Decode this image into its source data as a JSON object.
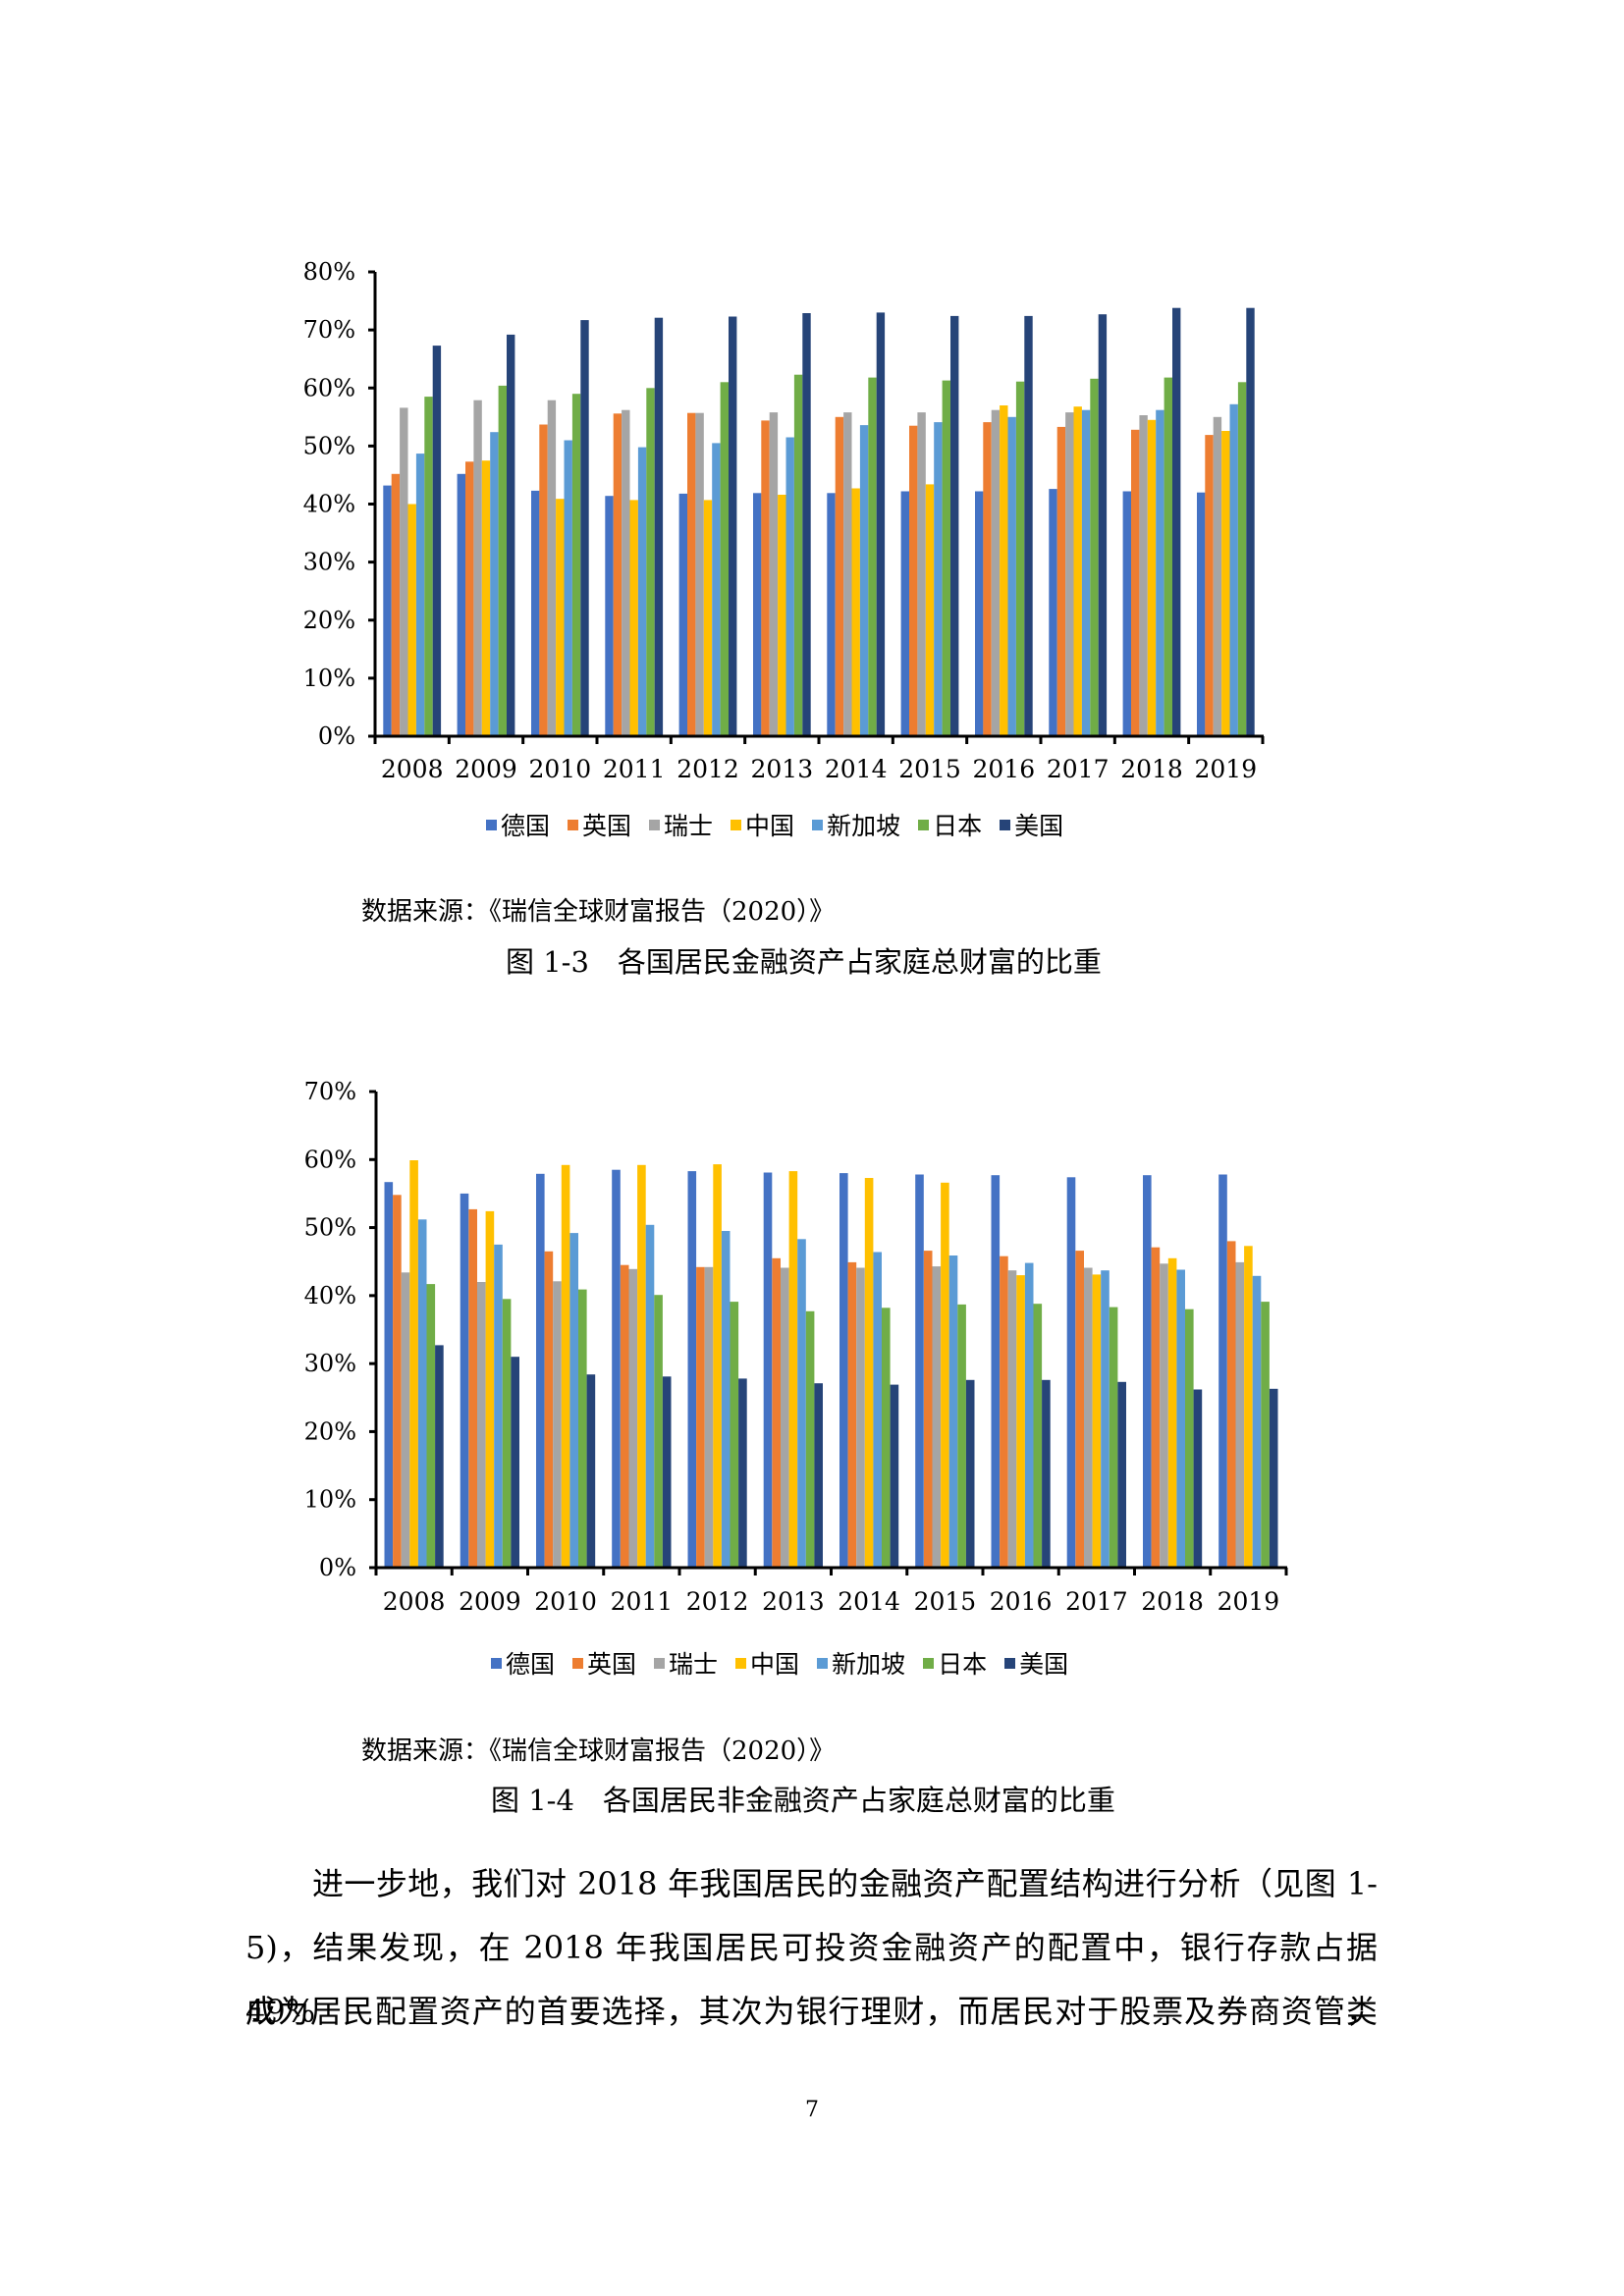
{
  "page": {
    "page_number": "7",
    "body_lines": [
      "进一步地，我们对 2018 年我国居民的金融资产配置结构进行分析（见图 1-",
      "5)，结果发现，在 2018 年我国居民可投资金融资产的配置中，银行存款占据 49%，",
      "成为居民配置资产的首要选择，其次为银行理财，而居民对于股票及券商资管类"
    ]
  },
  "figures": [
    {
      "source": "数据来源：《瑞信全球财富报告（2020）》",
      "caption": "图 1-3　各国居民金融资产占家庭总财富的比重"
    },
    {
      "source": "数据来源：《瑞信全球财富报告（2020）》",
      "caption": "图 1-4　各国居民非金融资产占家庭总财富的比重"
    }
  ],
  "chart_data": [
    {
      "type": "bar",
      "title": "图 1-3 各国居民金融资产占家庭总财富的比重",
      "xlabel": "",
      "ylabel": "",
      "ylim": [
        0,
        80
      ],
      "yticks": [
        "0%",
        "10%",
        "20%",
        "30%",
        "40%",
        "50%",
        "60%",
        "70%",
        "80%"
      ],
      "grid": false,
      "legend_position": "bottom",
      "categories": [
        "2008",
        "2009",
        "2010",
        "2011",
        "2012",
        "2013",
        "2014",
        "2015",
        "2016",
        "2017",
        "2018",
        "2019"
      ],
      "series": [
        {
          "name": "德国",
          "color": "#4472C4",
          "values": [
            43.2,
            45.2,
            42.3,
            41.4,
            41.8,
            41.9,
            41.9,
            42.2,
            42.2,
            42.6,
            42.2,
            42.0
          ]
        },
        {
          "name": "英国",
          "color": "#ED7D31",
          "values": [
            45.2,
            47.3,
            53.7,
            55.6,
            55.7,
            54.4,
            55.0,
            53.5,
            54.1,
            53.3,
            52.8,
            51.9
          ]
        },
        {
          "name": "瑞士",
          "color": "#A5A5A5",
          "values": [
            56.6,
            57.9,
            57.9,
            56.2,
            55.7,
            55.8,
            55.8,
            55.8,
            56.2,
            55.8,
            55.3,
            55.0
          ]
        },
        {
          "name": "中国",
          "color": "#FFC000",
          "values": [
            40.0,
            47.5,
            40.9,
            40.7,
            40.7,
            41.6,
            42.7,
            43.4,
            57.0,
            56.8,
            54.5,
            52.6
          ]
        },
        {
          "name": "新加坡",
          "color": "#5B9BD5",
          "values": [
            48.7,
            52.4,
            51.0,
            49.8,
            50.5,
            51.5,
            53.6,
            54.1,
            55.0,
            56.2,
            56.2,
            57.2
          ]
        },
        {
          "name": "日本",
          "color": "#70AD47",
          "values": [
            58.5,
            60.4,
            59.0,
            60.0,
            61.0,
            62.3,
            61.8,
            61.3,
            61.1,
            61.6,
            61.8,
            61.0
          ]
        },
        {
          "name": "美国",
          "color": "#264478",
          "values": [
            67.3,
            69.2,
            71.7,
            72.1,
            72.3,
            72.9,
            73.0,
            72.4,
            72.4,
            72.7,
            73.8,
            73.8
          ]
        }
      ]
    },
    {
      "type": "bar",
      "title": "图 1-4 各国居民非金融资产占家庭总财富的比重",
      "xlabel": "",
      "ylabel": "",
      "ylim": [
        0,
        70
      ],
      "yticks": [
        "0%",
        "10%",
        "20%",
        "30%",
        "40%",
        "50%",
        "60%",
        "70%"
      ],
      "grid": false,
      "legend_position": "bottom",
      "categories": [
        "2008",
        "2009",
        "2010",
        "2011",
        "2012",
        "2013",
        "2014",
        "2015",
        "2016",
        "2017",
        "2018",
        "2019"
      ],
      "series": [
        {
          "name": "德国",
          "color": "#4472C4",
          "values": [
            56.7,
            55.0,
            57.9,
            58.5,
            58.3,
            58.1,
            58.0,
            57.8,
            57.7,
            57.4,
            57.7,
            57.8
          ]
        },
        {
          "name": "英国",
          "color": "#ED7D31",
          "values": [
            54.8,
            52.7,
            46.5,
            44.5,
            44.2,
            45.5,
            44.9,
            46.6,
            45.8,
            46.6,
            47.1,
            48.0
          ]
        },
        {
          "name": "瑞士",
          "color": "#A5A5A5",
          "values": [
            43.4,
            42.0,
            42.1,
            43.9,
            44.2,
            44.1,
            44.1,
            44.3,
            43.7,
            44.1,
            44.7,
            44.9
          ]
        },
        {
          "name": "中国",
          "color": "#FFC000",
          "values": [
            59.9,
            52.4,
            59.2,
            59.2,
            59.3,
            58.3,
            57.3,
            56.6,
            43.0,
            43.1,
            45.5,
            47.3
          ]
        },
        {
          "name": "新加坡",
          "color": "#5B9BD5",
          "values": [
            51.2,
            47.5,
            49.2,
            50.4,
            49.5,
            48.3,
            46.4,
            45.9,
            44.8,
            43.7,
            43.8,
            42.9
          ]
        },
        {
          "name": "日本",
          "color": "#70AD47",
          "values": [
            41.7,
            39.5,
            40.9,
            40.1,
            39.1,
            37.7,
            38.2,
            38.7,
            38.8,
            38.3,
            38.0,
            39.1
          ]
        },
        {
          "name": "美国",
          "color": "#264478",
          "values": [
            32.7,
            31.0,
            28.4,
            28.1,
            27.8,
            27.1,
            26.9,
            27.6,
            27.6,
            27.3,
            26.2,
            26.3
          ]
        }
      ]
    }
  ]
}
